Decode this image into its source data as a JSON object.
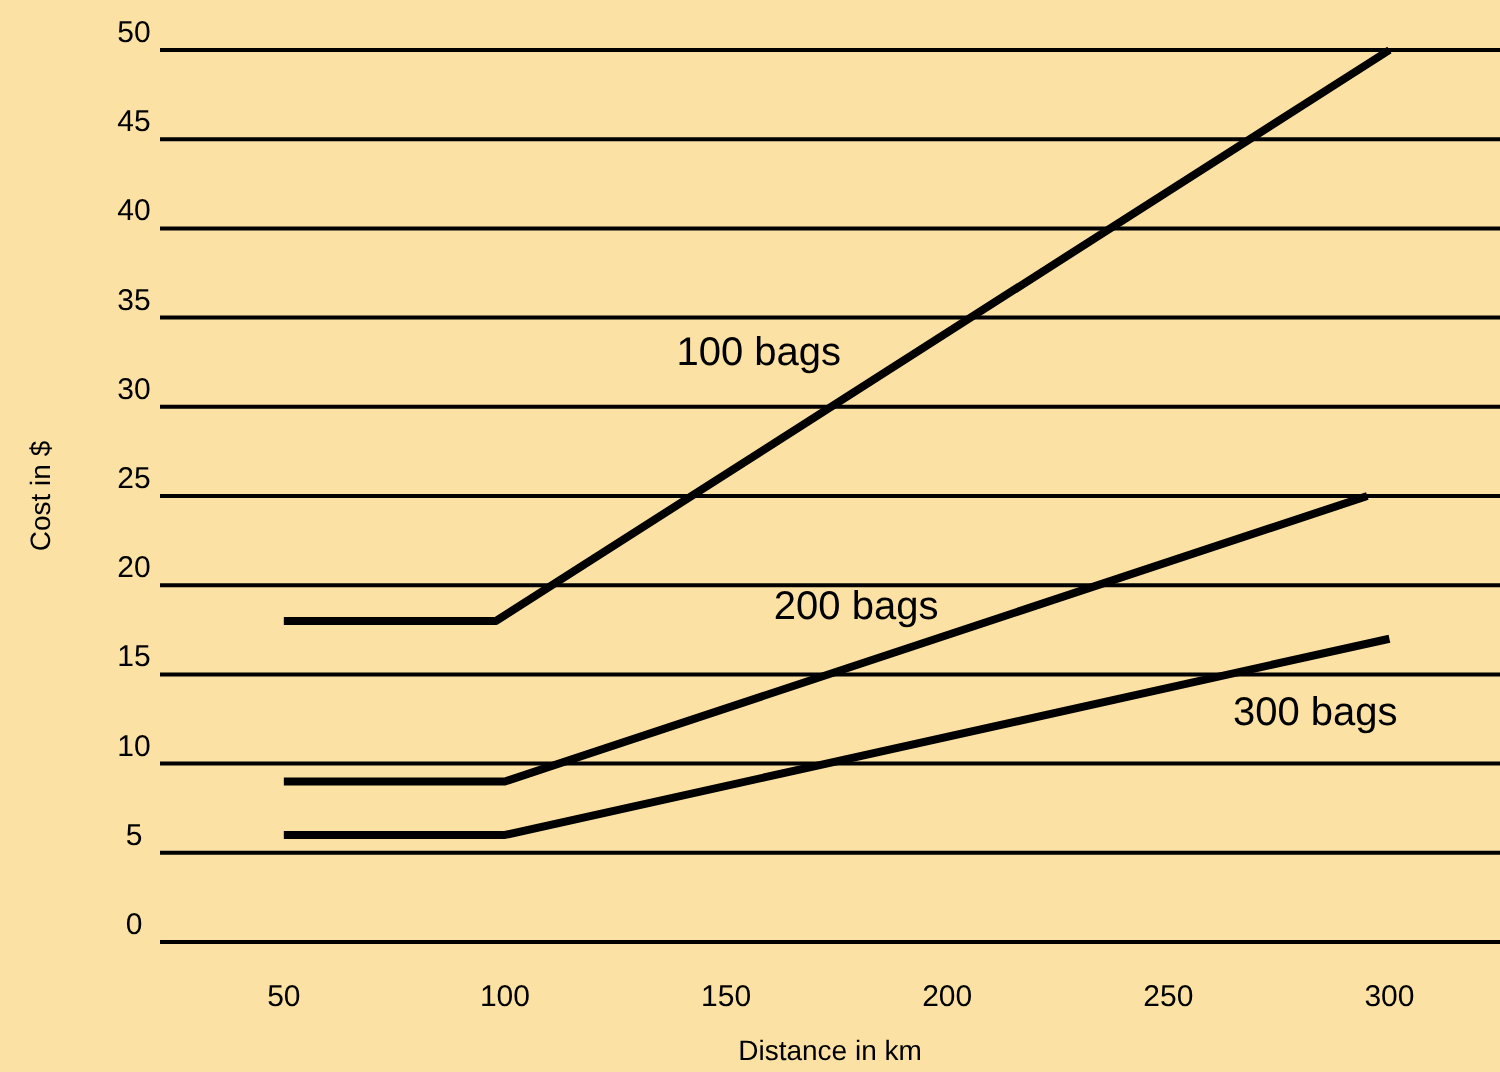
{
  "chart_data": {
    "type": "line",
    "xlabel": "Distance in km",
    "ylabel": "Cost in $",
    "xlim": [
      22,
      325
    ],
    "xticks": [
      50,
      100,
      150,
      200,
      250,
      300
    ],
    "ylim": [
      0,
      50
    ],
    "yticks": [
      0,
      5,
      10,
      15,
      20,
      25,
      30,
      35,
      40,
      45,
      50
    ],
    "grid": "y",
    "legend": false,
    "marker": "none",
    "line_style": "solid",
    "series": [
      {
        "name": "100 bags",
        "color": "#000000",
        "x": [
          50,
          98,
          300
        ],
        "values": [
          18,
          18,
          50
        ]
      },
      {
        "name": "200 bags",
        "color": "#000000",
        "x": [
          50,
          100,
          295
        ],
        "values": [
          9,
          9,
          25
        ]
      },
      {
        "name": "300 bags",
        "color": "#000000",
        "x": [
          50,
          100,
          300
        ],
        "values": [
          6,
          6,
          17
        ]
      }
    ]
  }
}
